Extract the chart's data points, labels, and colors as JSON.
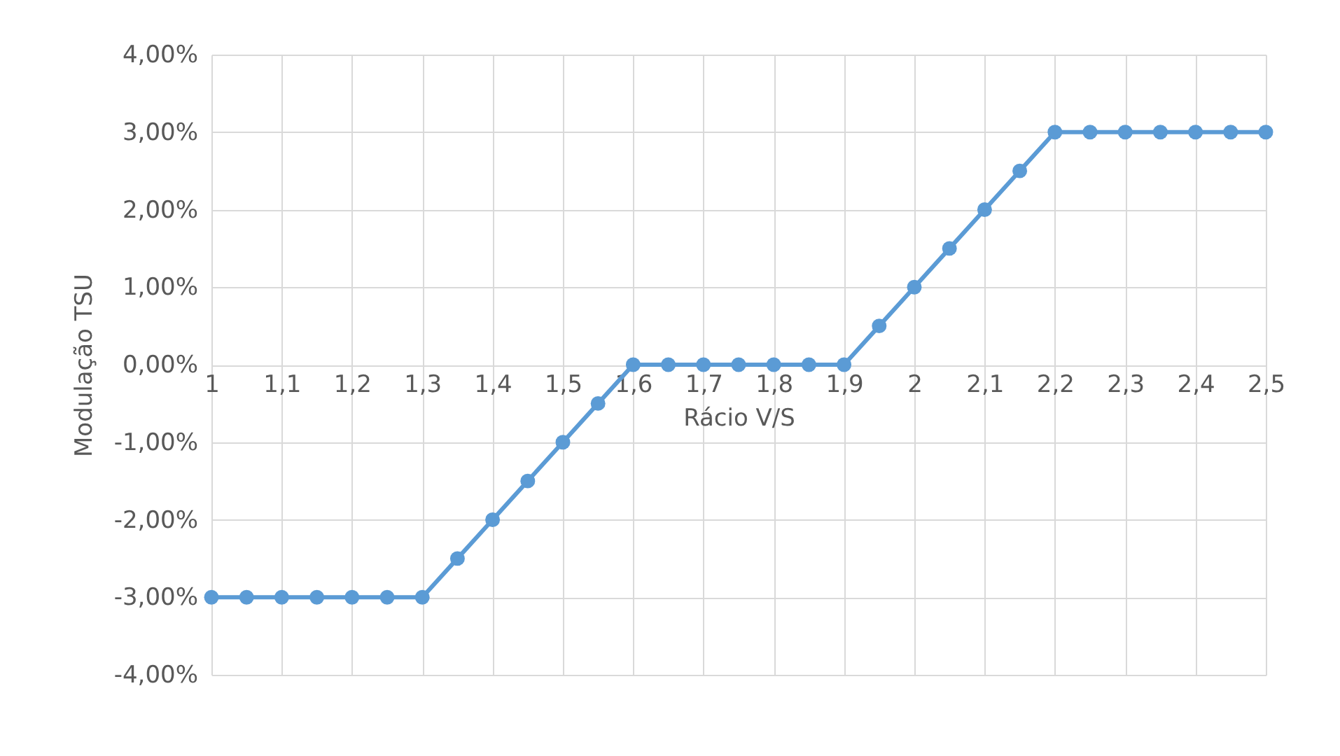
{
  "chart_data": {
    "type": "line",
    "xlabel": "Rácio V/S",
    "ylabel": "Modulação TSU",
    "x": [
      1,
      1.05,
      1.1,
      1.15,
      1.2,
      1.25,
      1.3,
      1.35,
      1.4,
      1.45,
      1.5,
      1.55,
      1.6,
      1.65,
      1.7,
      1.75,
      1.8,
      1.85,
      1.9,
      1.95,
      2,
      2.05,
      2.1,
      2.15,
      2.2,
      2.25,
      2.3,
      2.35,
      2.4,
      2.45,
      2.5
    ],
    "series": [
      {
        "color": "#5b9bd5",
        "values": [
          -3,
          -3,
          -3,
          -3,
          -3,
          -3,
          -3,
          -2.5,
          -2,
          -1.5,
          -1,
          -0.5,
          0,
          0,
          0,
          0,
          0,
          0,
          0,
          0.5,
          1,
          1.5,
          2,
          2.5,
          3,
          3,
          3,
          3,
          3,
          3,
          3
        ]
      }
    ],
    "xlim": [
      1,
      2.5
    ],
    "xticks": [
      1,
      {
        "value": 1.1,
        "label": "1,1"
      },
      {
        "value": 1.2,
        "label": "1,2"
      },
      {
        "value": 1.3,
        "label": "1,3"
      },
      {
        "value": 1.4,
        "label": "1,4"
      },
      {
        "value": 1.5,
        "label": "1,5"
      },
      {
        "value": 1.6,
        "label": "1,6"
      },
      {
        "value": 1.7,
        "label": "1,7"
      },
      {
        "value": 1.8,
        "label": "1,8"
      },
      {
        "value": 1.9,
        "label": "1,9"
      },
      2,
      {
        "value": 2.1,
        "label": "2,1"
      },
      {
        "value": 2.2,
        "label": "2,2"
      },
      {
        "value": 2.3,
        "label": "2,3"
      },
      {
        "value": 2.4,
        "label": "2,4"
      },
      {
        "value": 2.5,
        "label": "2,5"
      }
    ],
    "ylim": [
      -4,
      4
    ],
    "yticks": [
      {
        "value": -4,
        "label": "-4,00%"
      },
      {
        "value": -3,
        "label": "-3,00%"
      },
      {
        "value": -2,
        "label": "-2,00%"
      },
      {
        "value": -1,
        "label": "-1,00%"
      },
      {
        "value": 0,
        "label": "0,00%"
      },
      {
        "value": 1,
        "label": "1,00%"
      },
      {
        "value": 2,
        "label": "2,00%"
      },
      {
        "value": 3,
        "label": "3,00%"
      },
      {
        "value": 4,
        "label": "4,00%"
      }
    ],
    "grid": true,
    "marker": "circle",
    "line_style": "solid",
    "legend": false
  }
}
